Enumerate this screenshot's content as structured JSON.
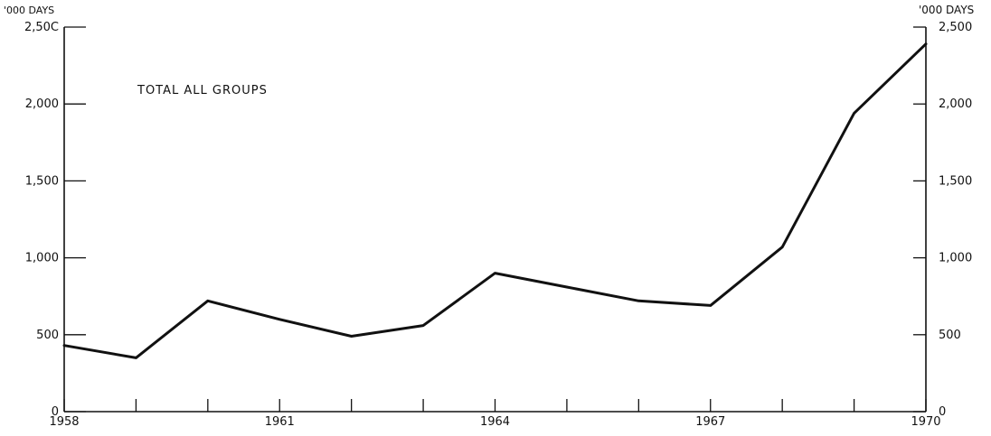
{
  "chart_data": {
    "type": "line",
    "title": "TOTAL ALL GROUPS",
    "ylabel_left": "'000 DAYS",
    "ylabel_right": "'000 DAYS",
    "xlabel": "",
    "x": [
      1958,
      1959,
      1960,
      1961,
      1962,
      1963,
      1964,
      1965,
      1966,
      1967,
      1968,
      1969,
      1970
    ],
    "x_tick_labels": [
      {
        "x": 1958,
        "label": "1958"
      },
      {
        "x": 1961,
        "label": "1961"
      },
      {
        "x": 1964,
        "label": "1964"
      },
      {
        "x": 1967,
        "label": "1967"
      },
      {
        "x": 1970,
        "label": "1970"
      }
    ],
    "y_ticks": [
      {
        "value": 0,
        "left": "0",
        "right": "0"
      },
      {
        "value": 500,
        "left": "500",
        "right": "500"
      },
      {
        "value": 1000,
        "left": "1,000",
        "right": "1,000"
      },
      {
        "value": 1500,
        "left": "1,500",
        "right": "1,500"
      },
      {
        "value": 2000,
        "left": "2,000",
        "right": "2,000"
      },
      {
        "value": 2500,
        "left": "2,50C",
        "right": "2,500"
      }
    ],
    "series": [
      {
        "values": [
          430,
          350,
          720,
          600,
          490,
          560,
          900,
          810,
          720,
          690,
          1070,
          1940,
          2390
        ]
      }
    ],
    "xlim": [
      1958,
      1970
    ],
    "ylim": [
      0,
      2500
    ],
    "grid": false,
    "legend": "none"
  }
}
